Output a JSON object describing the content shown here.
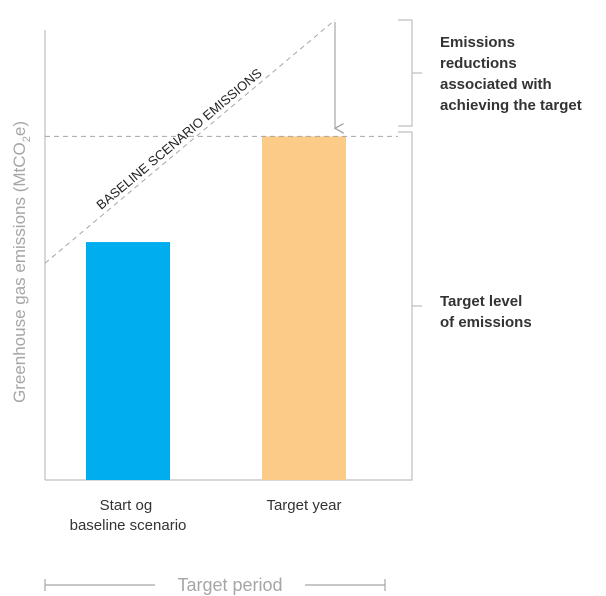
{
  "chart_data": {
    "type": "bar",
    "title": "",
    "xlabel": "",
    "ylabel_prefix": "Greenhouse gas emissions (MtCO",
    "ylabel_sub": "2",
    "ylabel_suffix": "e)",
    "categories": [
      [
        "Start og",
        "baseline scenario"
      ],
      [
        "Target year"
      ]
    ],
    "values": [
      45,
      65
    ],
    "colors": [
      "#00adee",
      "#fccb87"
    ],
    "ylim": [
      0,
      87
    ],
    "baseline": {
      "label": "BASELINE SCENARIO EMISSIONS",
      "start_value": 41,
      "end_value": 87
    },
    "target_line_value": 65,
    "annotations": {
      "reduction": [
        "Emissions",
        "reductions",
        "associated with",
        "achieving the target"
      ],
      "target_level": [
        "Target level",
        "of emissions"
      ]
    },
    "period_label": "Target period",
    "grid": false,
    "legend": "none"
  },
  "colors": {
    "axis": "#bfbfbf",
    "dashed": "#a6a6a6",
    "text": "#333333",
    "muted": "#a6a6a6"
  }
}
